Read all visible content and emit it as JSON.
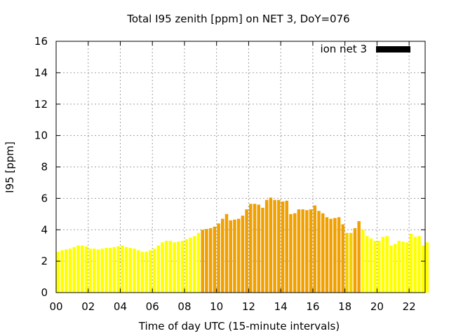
{
  "chart_data": {
    "type": "bar",
    "title": "Total I95 zenith [ppm] on NET 3, DoY=076",
    "xlabel": "Time of day UTC (15-minute intervals)",
    "ylabel": "I95 [ppm]",
    "legend": {
      "label": "ion net 3",
      "position": "top-right",
      "swatch_color": "#000000"
    },
    "xlim": [
      0,
      23
    ],
    "ylim": [
      0,
      16
    ],
    "x_tick_labels": [
      "00",
      "02",
      "04",
      "06",
      "08",
      "10",
      "12",
      "14",
      "16",
      "18",
      "20",
      "22"
    ],
    "x_tick_values": [
      0,
      2,
      4,
      6,
      8,
      10,
      12,
      14,
      16,
      18,
      20,
      22
    ],
    "y_ticks": [
      0,
      2,
      4,
      6,
      8,
      10,
      12,
      14,
      16
    ],
    "grid": true,
    "bar_interval_hours": 0.25,
    "colors": {
      "low": "#ffff00",
      "mid": "#f5d000",
      "high": "#f0a000"
    },
    "values": [
      2.6,
      2.7,
      2.75,
      2.8,
      2.9,
      3.0,
      3.0,
      2.95,
      2.8,
      2.8,
      2.75,
      2.8,
      2.85,
      2.85,
      2.9,
      2.95,
      3.0,
      2.9,
      2.85,
      2.8,
      2.7,
      2.6,
      2.6,
      2.7,
      2.8,
      3.0,
      3.2,
      3.3,
      3.3,
      3.2,
      3.25,
      3.3,
      3.4,
      3.5,
      3.6,
      3.8,
      4.0,
      4.05,
      4.1,
      4.2,
      4.4,
      4.7,
      5.0,
      4.6,
      4.65,
      4.7,
      4.9,
      5.3,
      5.65,
      5.65,
      5.6,
      5.4,
      5.9,
      6.05,
      5.9,
      5.9,
      5.8,
      5.85,
      5.0,
      5.05,
      5.3,
      5.3,
      5.25,
      5.3,
      5.55,
      5.2,
      5.05,
      4.8,
      4.7,
      4.75,
      4.8,
      4.35,
      3.8,
      3.8,
      4.1,
      4.55,
      4.0,
      3.6,
      3.45,
      3.3,
      3.3,
      3.55,
      3.6,
      3.0,
      3.1,
      3.3,
      3.25,
      3.2,
      3.75,
      3.55,
      3.6,
      3.0,
      3.2
    ],
    "bar_level": [
      "low",
      "low",
      "low",
      "low",
      "low",
      "low",
      "low",
      "low",
      "low",
      "low",
      "low",
      "low",
      "low",
      "low",
      "low",
      "low",
      "low",
      "low",
      "low",
      "low",
      "low",
      "low",
      "low",
      "low",
      "low",
      "low",
      "low",
      "low",
      "low",
      "low",
      "low",
      "low",
      "low",
      "low",
      "low",
      "low",
      "high",
      "high",
      "high",
      "high",
      "high",
      "high",
      "high",
      "high",
      "high",
      "high",
      "high",
      "high",
      "high",
      "high",
      "high",
      "high",
      "high",
      "high",
      "high",
      "high",
      "high",
      "high",
      "high",
      "high",
      "high",
      "high",
      "high",
      "high",
      "high",
      "high",
      "high",
      "high",
      "high",
      "high",
      "high",
      "high",
      "mid",
      "mid",
      "high",
      "high",
      "low",
      "low",
      "low",
      "low",
      "low",
      "low",
      "low",
      "low",
      "low",
      "low",
      "low",
      "low",
      "low",
      "low",
      "low",
      "low",
      "low"
    ]
  }
}
